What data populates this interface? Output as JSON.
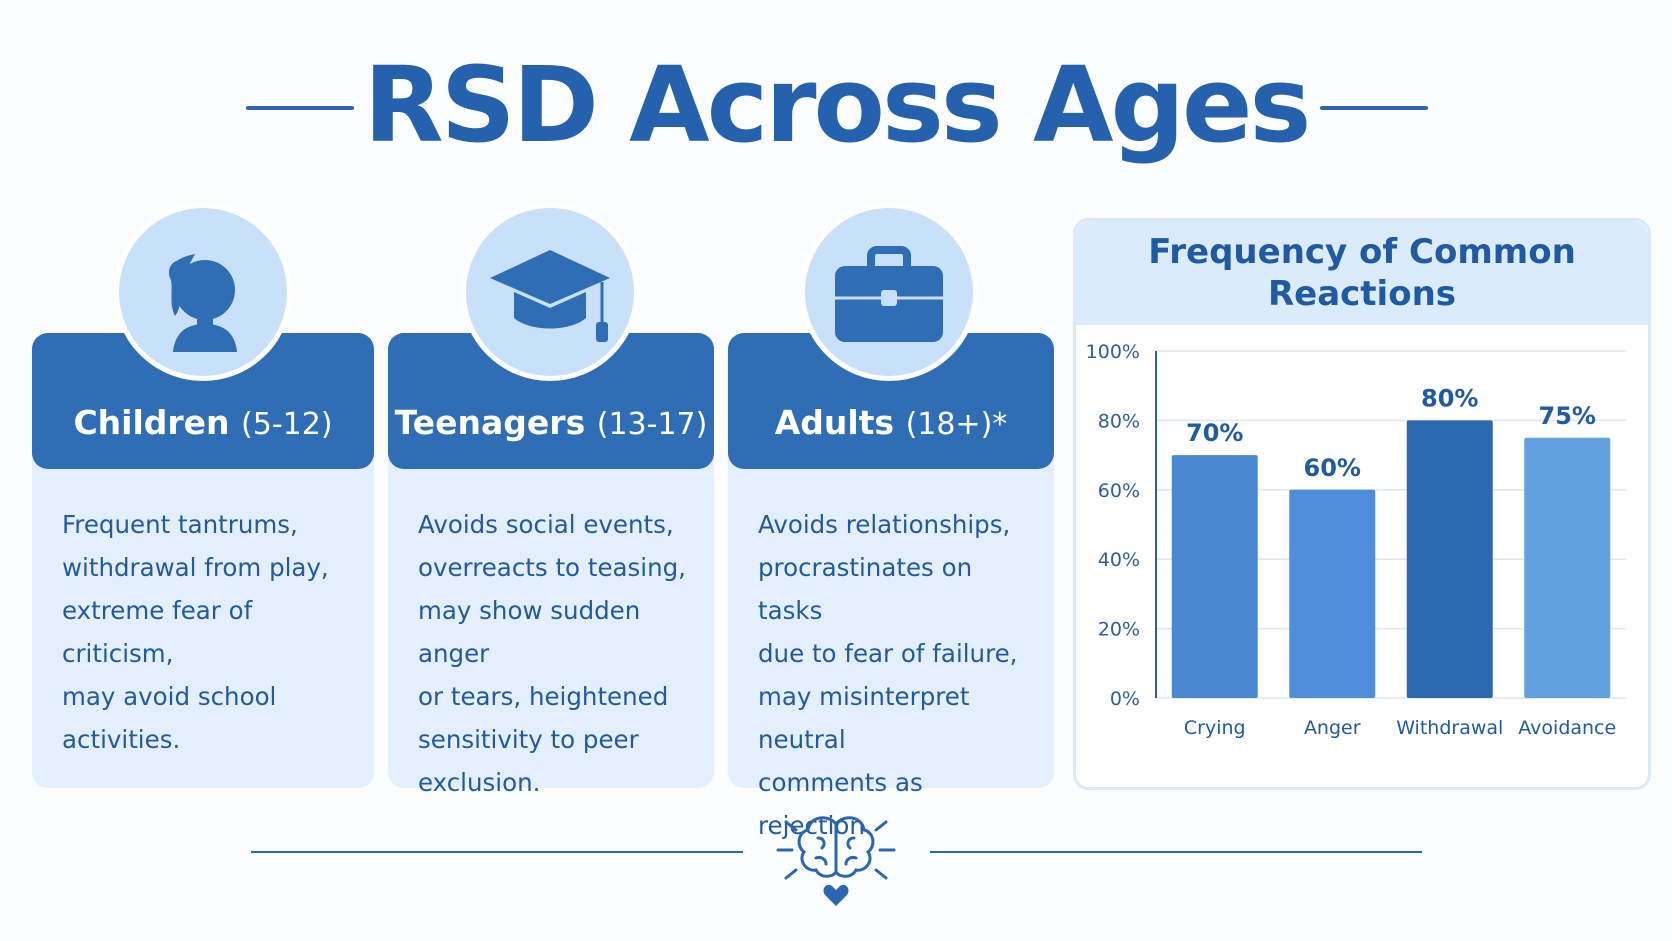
{
  "title": "RSD Across Ages",
  "cards": [
    {
      "label_main": "Children",
      "label_sub": "(5-12)",
      "icon": "child-silhouette-icon",
      "lines": [
        "Frequent tantrums,",
        "withdrawal from play,",
        "extreme fear of criticism,",
        "may avoid school",
        "activities."
      ]
    },
    {
      "label_main": "Teenagers",
      "label_sub": "(13-17)",
      "icon": "graduation-cap-icon",
      "lines": [
        "Avoids social events,",
        "overreacts to teasing,",
        "may show sudden anger",
        "or tears, heightened",
        "sensitivity to peer",
        "exclusion."
      ]
    },
    {
      "label_main": "Adults",
      "label_sub": "(18+)*",
      "icon": "briefcase-icon",
      "lines": [
        "Avoids relationships,",
        "procrastinates on tasks",
        "due to fear of failure,",
        "may misinterpret neutral",
        "comments as rejection."
      ]
    }
  ],
  "chart_data": {
    "type": "bar",
    "title": "Frequency of Common Reactions",
    "categories": [
      "Crying",
      "Anger",
      "Withdrawal",
      "Avoidance"
    ],
    "values": [
      70,
      60,
      80,
      75
    ],
    "value_labels": [
      "70%",
      "60%",
      "80%",
      "75%"
    ],
    "ylim": [
      0,
      100
    ],
    "yticks": [
      0,
      20,
      40,
      60,
      80,
      100
    ],
    "ytick_labels": [
      "0%",
      "20%",
      "40%",
      "60%",
      "80%",
      "100%"
    ],
    "grid": true,
    "colors": [
      "#4a88d2",
      "#4f8fd9",
      "#2d69b0",
      "#63a0e0"
    ]
  },
  "colors": {
    "accent": "#2561ad",
    "card_head": "#2f6db4",
    "card_body": "#e3effc",
    "icon_circle": "#c8e0f9"
  },
  "footer": {
    "icon": "brain-heart-icon"
  }
}
